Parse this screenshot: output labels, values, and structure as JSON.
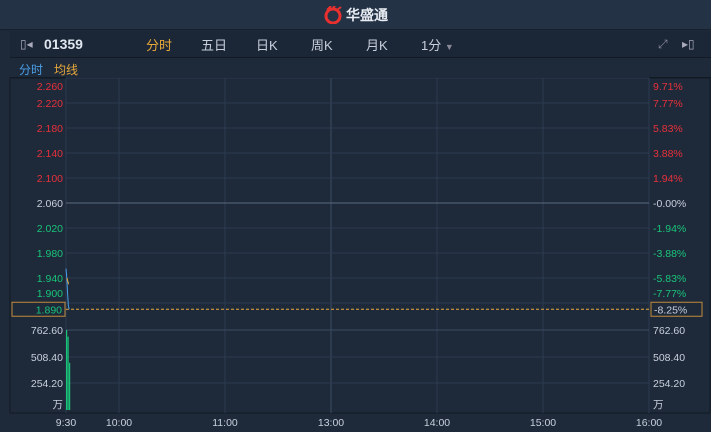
{
  "header": {
    "brand": "华盛通",
    "brand_color": "#e8302f"
  },
  "toolbar": {
    "stock_code": "01359",
    "tabs": [
      "分时",
      "五日",
      "日K",
      "周K",
      "月K"
    ],
    "active_tab": "分时",
    "interval": "1分",
    "collapse_icon": "panel-collapse-left-icon",
    "fullscreen_icon": "expand-icon",
    "expand_icon": "panel-expand-right-icon"
  },
  "legend": {
    "series1": "分时",
    "series2": "均线",
    "series1_color": "#4a9fe8",
    "series2_color": "#e8a83a"
  },
  "chart_data": {
    "type": "line",
    "price_ticks": [
      "2.260",
      "2.220",
      "2.180",
      "2.140",
      "2.100",
      "2.060",
      "2.020",
      "1.980",
      "1.940",
      "1.900"
    ],
    "pct_ticks": [
      "9.71%",
      "7.77%",
      "5.83%",
      "3.88%",
      "1.94%",
      "-0.00%",
      "-1.94%",
      "-3.88%",
      "-5.83%",
      "-7.77%"
    ],
    "prev_close": 2.06,
    "current_price": "1.890",
    "current_pct": "-8.25%",
    "volume_ticks": [
      "762.60",
      "508.40",
      "254.20"
    ],
    "volume_unit": "万",
    "x_ticks": [
      "9:30",
      "10:00",
      "11:00",
      "13:00",
      "14:00",
      "15:00",
      "16:00"
    ],
    "price_series": [
      1.955,
      1.94,
      1.915,
      1.895,
      1.89
    ],
    "avg_series": [
      1.94,
      1.935,
      1.93
    ],
    "volume_series": [
      762.6,
      700,
      450
    ],
    "colors": {
      "up": "#e8303a",
      "down": "#19c47a",
      "grid": "#2c3b50",
      "line": "#4a9fe8",
      "avg": "#e8a83a"
    }
  }
}
